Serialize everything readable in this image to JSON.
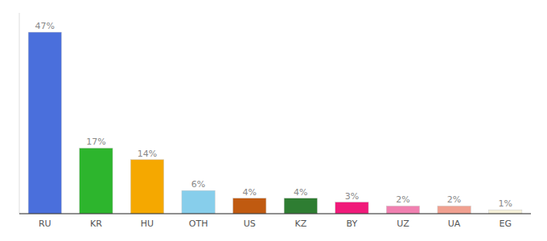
{
  "chart_data": {
    "type": "bar",
    "categories": [
      "RU",
      "KR",
      "HU",
      "OTH",
      "US",
      "KZ",
      "BY",
      "UZ",
      "UA",
      "EG"
    ],
    "values": [
      47,
      17,
      14,
      6,
      4,
      4,
      3,
      2,
      2,
      1
    ],
    "value_labels": [
      "47%",
      "17%",
      "14%",
      "6%",
      "4%",
      "4%",
      "3%",
      "2%",
      "2%",
      "1%"
    ],
    "colors": [
      "#4a6fdc",
      "#2db52d",
      "#f5a800",
      "#87ceeb",
      "#c05a10",
      "#2e7d32",
      "#f01a7a",
      "#f080b0",
      "#f0a090",
      "#f5f0d8"
    ],
    "ylim": [
      0,
      52
    ],
    "data_labels": true,
    "tick_labels": "x",
    "grid": false
  }
}
